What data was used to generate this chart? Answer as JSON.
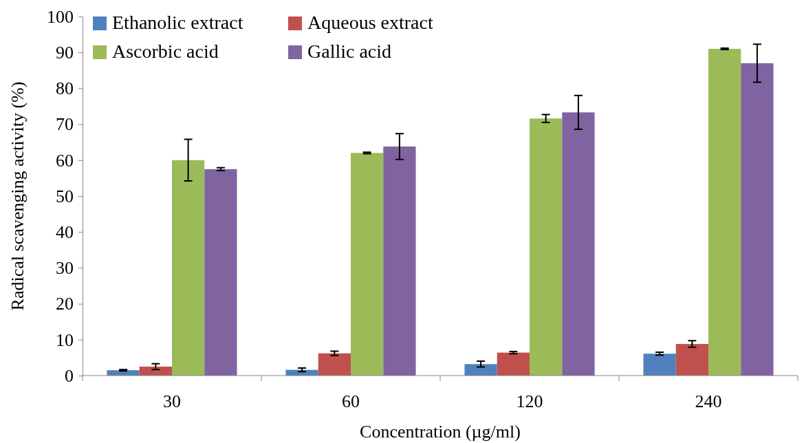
{
  "chart_data": {
    "type": "bar",
    "xlabel": "Concentration (µg/ml)",
    "ylabel": "Radical scavenging activity (%)",
    "categories": [
      "30",
      "60",
      "120",
      "240"
    ],
    "series": [
      {
        "name": "Ethanolic extract",
        "color": "#4f81bd",
        "values": [
          1.5,
          1.6,
          3.2,
          6.1
        ],
        "errors": [
          0.2,
          0.5,
          0.8,
          0.4
        ]
      },
      {
        "name": "Aqueous extract",
        "color": "#c0504d",
        "values": [
          2.5,
          6.2,
          6.4,
          8.8
        ],
        "errors": [
          0.8,
          0.6,
          0.3,
          0.9
        ]
      },
      {
        "name": "Ascorbic acid",
        "color": "#9bbb59",
        "values": [
          60,
          62,
          71.6,
          91
        ],
        "errors": [
          5.8,
          0.2,
          1.1,
          0.2
        ]
      },
      {
        "name": "Gallic acid",
        "color": "#8064a2",
        "values": [
          57.5,
          63.8,
          73.3,
          87
        ],
        "errors": [
          0.4,
          3.6,
          4.7,
          5.3
        ]
      }
    ],
    "ylim": [
      0,
      100
    ],
    "yticks": [
      0,
      10,
      20,
      30,
      40,
      50,
      60,
      70,
      80,
      90,
      100
    ],
    "grid": false,
    "legend": "top left"
  }
}
